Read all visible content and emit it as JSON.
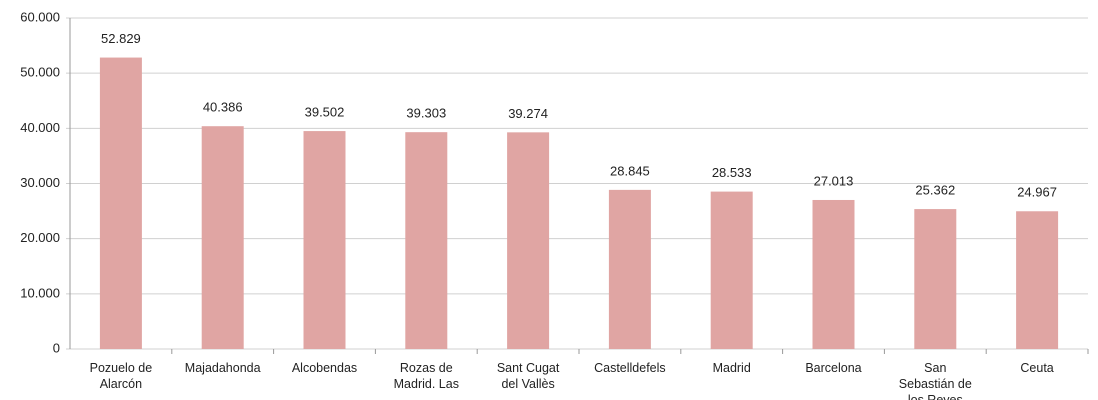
{
  "chart_data": {
    "type": "bar",
    "categories": [
      "Pozuelo de Alarcón",
      "Majadahonda",
      "Alcobendas",
      "Rozas de Madrid. Las",
      "Sant Cugat del Vallès",
      "Castelldefels",
      "Madrid",
      "Barcelona",
      "San Sebastián de los Reyes",
      "Ceuta"
    ],
    "values": [
      52829,
      40386,
      39502,
      39303,
      39274,
      28845,
      28533,
      27013,
      25362,
      24967
    ],
    "value_labels": [
      "52.829",
      "40.386",
      "39.502",
      "39.303",
      "39.274",
      "28.845",
      "28.533",
      "27.013",
      "25.362",
      "24.967"
    ],
    "color": "#e0a5a3",
    "ylim": [
      0,
      60000
    ],
    "yticks": [
      0,
      {
        "value": 10000,
        "label": "10.000"
      },
      {
        "value": 20000,
        "label": "20.000"
      },
      {
        "value": 30000,
        "label": "30.000"
      },
      {
        "value": 40000,
        "label": "40.000"
      },
      {
        "value": 50000,
        "label": "50.000"
      },
      {
        "value": 60000,
        "label": "60.000"
      }
    ],
    "grid": true
  }
}
